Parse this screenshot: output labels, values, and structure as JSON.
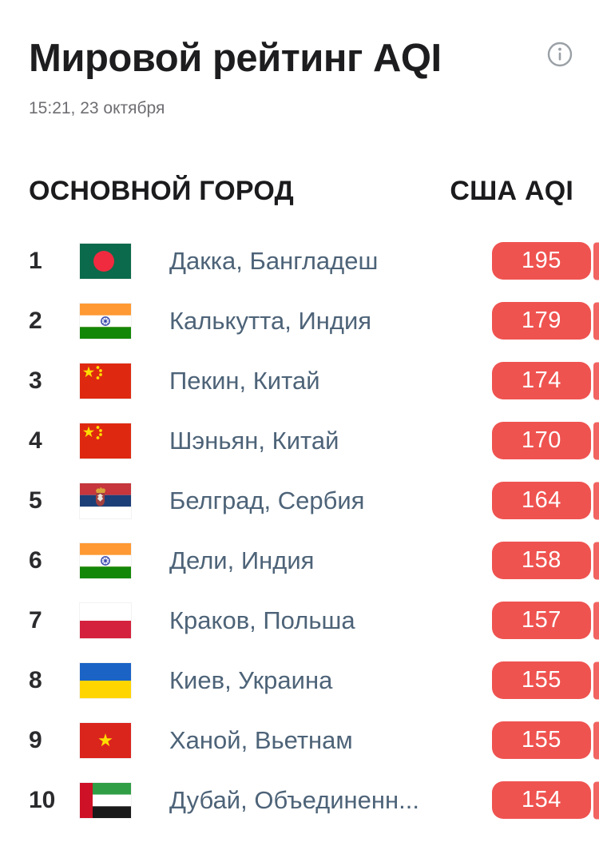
{
  "header": {
    "title": "Мировой рейтинг AQI",
    "timestamp": "15:21, 23 октября"
  },
  "table": {
    "columns": {
      "city": "ОСНОВНОЙ ГОРОД",
      "aqi": "США AQI"
    },
    "rows": [
      {
        "rank": "1",
        "flag": "bangladesh-flag",
        "flag_code": "bd",
        "city": "Дакка, Бангладеш",
        "aqi": "195"
      },
      {
        "rank": "2",
        "flag": "india-flag",
        "flag_code": "in",
        "city": "Калькутта, Индия",
        "aqi": "179"
      },
      {
        "rank": "3",
        "flag": "china-flag",
        "flag_code": "cn",
        "city": "Пекин, Китай",
        "aqi": "174"
      },
      {
        "rank": "4",
        "flag": "china-flag",
        "flag_code": "cn",
        "city": "Шэньян, Китай",
        "aqi": "170"
      },
      {
        "rank": "5",
        "flag": "serbia-flag",
        "flag_code": "rs",
        "city": "Белград, Сербия",
        "aqi": "164"
      },
      {
        "rank": "6",
        "flag": "india-flag",
        "flag_code": "in",
        "city": "Дели, Индия",
        "aqi": "158"
      },
      {
        "rank": "7",
        "flag": "poland-flag",
        "flag_code": "pl",
        "city": "Краков, Польша",
        "aqi": "157"
      },
      {
        "rank": "8",
        "flag": "ukraine-flag",
        "flag_code": "ua",
        "city": "Киев, Украина",
        "aqi": "155"
      },
      {
        "rank": "9",
        "flag": "vietnam-flag",
        "flag_code": "vn",
        "city": "Ханой, Вьетнам",
        "aqi": "155"
      },
      {
        "rank": "10",
        "flag": "uae-flag",
        "flag_code": "ae",
        "city": "Дубай, Объединенн...",
        "aqi": "154"
      }
    ]
  },
  "colors": {
    "aqi_badge": "#ef5350",
    "city_text": "#4d6378"
  }
}
